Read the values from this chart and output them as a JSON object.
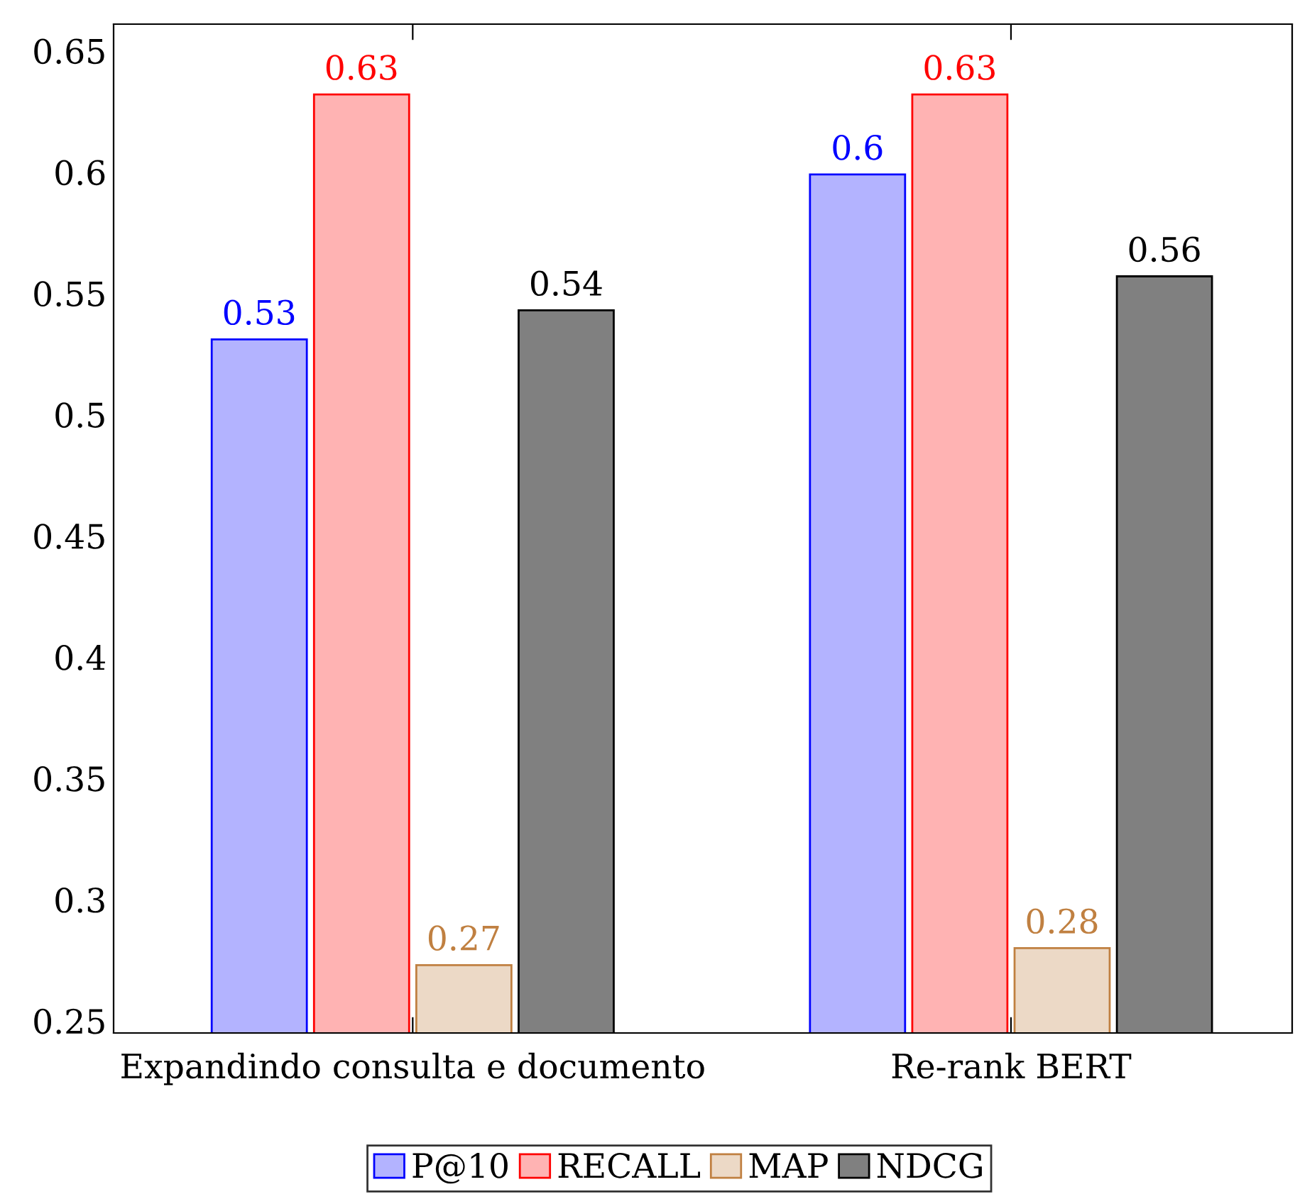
{
  "chart_data": {
    "type": "bar",
    "categories": [
      "Expandindo consulta e documento",
      "Re-rank BERT"
    ],
    "series": [
      {
        "name": "P@10",
        "color": "#b3b3ff",
        "values": [
          0.531,
          0.599
        ],
        "value_labels": [
          "0.53",
          "0.6"
        ]
      },
      {
        "name": "RECALL",
        "color": "#ffb3b3",
        "values": [
          0.632,
          0.632
        ],
        "value_labels": [
          "0.63",
          "0.63"
        ]
      },
      {
        "name": "MAP",
        "color": "#ecd9c6",
        "values": [
          0.273,
          0.28
        ],
        "value_labels": [
          "0.27",
          "0.28"
        ]
      },
      {
        "name": "NDCG",
        "color": "#808080",
        "values": [
          0.543,
          0.557
        ],
        "value_labels": [
          "0.54",
          "0.56"
        ]
      }
    ],
    "ylim": [
      0.245,
      0.661
    ],
    "yticks": [
      0.25,
      0.3,
      0.35,
      0.4,
      0.45,
      0.5,
      0.55,
      0.6,
      0.65
    ],
    "legend": "bottom",
    "grid": false
  }
}
